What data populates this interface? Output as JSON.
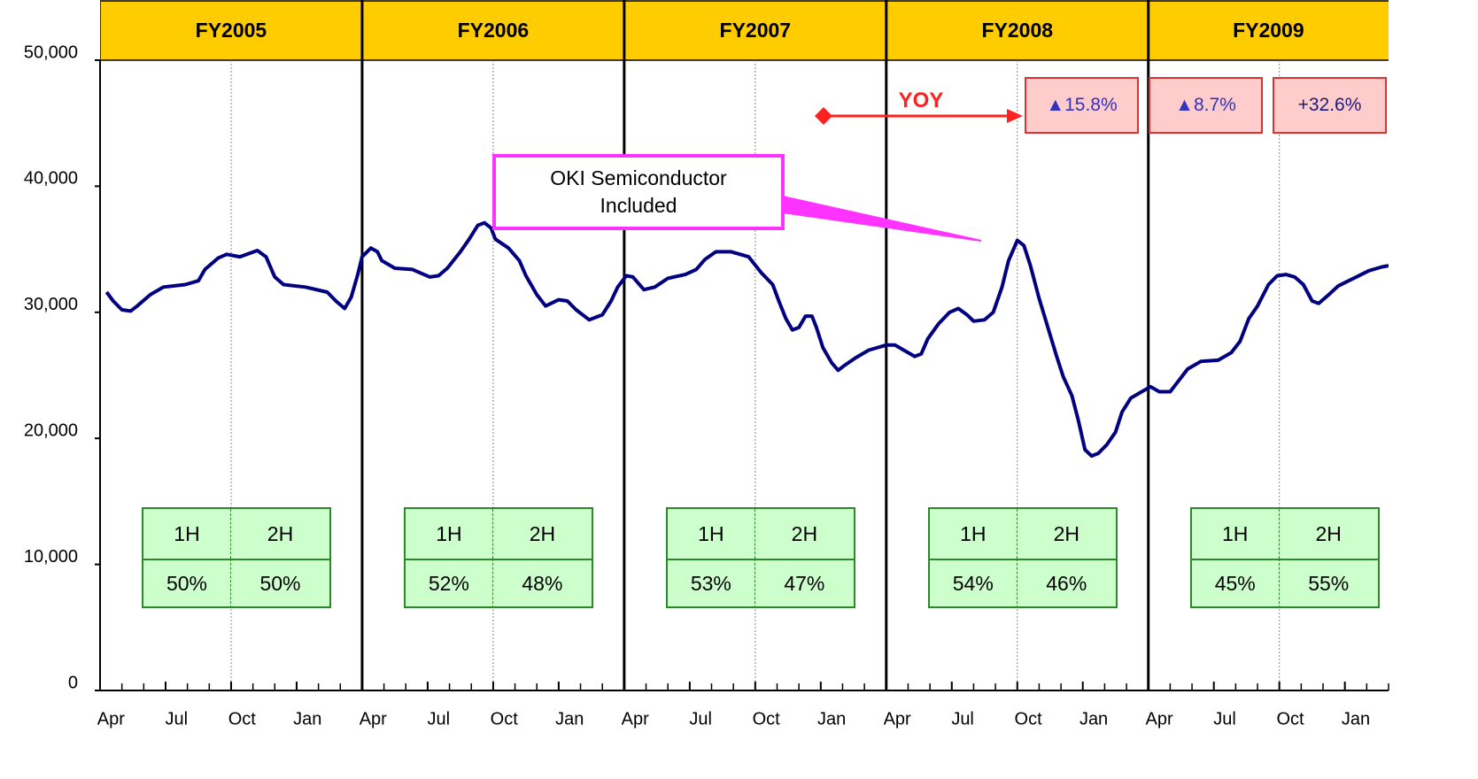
{
  "chart_data": {
    "type": "line",
    "color": "#000080",
    "x": [
      0.3,
      0.6,
      1.0,
      1.4,
      1.7,
      2.3,
      2.9,
      3.9,
      4.5,
      4.8,
      5.4,
      5.8,
      6.4,
      7.2,
      7.6,
      8.0,
      8.4,
      9.4,
      10.4,
      10.8,
      11.2,
      11.5,
      11.8,
      12.0,
      12.4,
      12.7,
      12.9,
      13.5,
      14.3,
      15.1,
      15.5,
      15.9,
      16.5,
      16.9,
      17.3,
      17.6,
      17.9,
      18.1,
      18.7,
      19.2,
      19.5,
      20.0,
      20.4,
      21.0,
      21.4,
      21.8,
      22.4,
      23.0,
      23.4,
      23.7,
      24.1,
      24.4,
      24.9,
      25.4,
      26.0,
      26.8,
      27.3,
      27.7,
      28.2,
      28.9,
      29.7,
      30.3,
      30.8,
      31.1,
      31.4,
      31.7,
      32.0,
      32.3,
      32.6,
      32.8,
      33.1,
      33.5,
      33.8,
      34.1,
      34.6,
      35.2,
      36.0,
      36.4,
      36.8,
      37.3,
      37.6,
      37.9,
      38.4,
      38.9,
      39.3,
      39.7,
      40.0,
      40.5,
      40.9,
      41.3,
      41.6,
      42.0,
      42.3,
      42.6,
      43.0,
      43.4,
      43.8,
      44.1,
      44.5,
      44.8,
      45.1,
      45.4,
      45.7,
      46.1,
      46.5,
      46.8,
      47.2,
      47.7,
      48.1,
      48.5,
      49.0,
      49.4,
      49.8,
      50.4,
      51.2,
      51.8,
      52.2,
      52.6,
      53.0,
      53.5,
      53.9,
      54.3,
      54.7,
      55.1,
      55.5,
      55.8,
      56.2,
      56.7,
      57.4,
      58.1,
      58.7,
      59.0
    ],
    "values": [
      31600,
      30900,
      30200,
      30100,
      30500,
      31400,
      32000,
      32200,
      32500,
      33400,
      34300,
      34600,
      34400,
      34900,
      34400,
      32800,
      32200,
      32000,
      31600,
      30900,
      30300,
      31200,
      33000,
      34400,
      35100,
      34800,
      34100,
      33500,
      33400,
      32800,
      32900,
      33500,
      34800,
      35800,
      36900,
      37100,
      36700,
      35800,
      35100,
      34100,
      32900,
      31400,
      30500,
      31000,
      30900,
      30200,
      29400,
      29800,
      30900,
      32000,
      32900,
      32800,
      31800,
      32000,
      32700,
      33000,
      33400,
      34200,
      34800,
      34800,
      34400,
      33100,
      32200,
      30800,
      29500,
      28600,
      28800,
      29700,
      29700,
      28800,
      27200,
      26000,
      25400,
      25800,
      26400,
      27000,
      27400,
      27400,
      27000,
      26500,
      26700,
      27900,
      29100,
      30000,
      30300,
      29800,
      29300,
      29400,
      30000,
      32000,
      34100,
      35700,
      35300,
      33700,
      31100,
      28800,
      26500,
      24900,
      23400,
      21400,
      19100,
      18600,
      18800,
      19500,
      20500,
      22100,
      23200,
      23700,
      24100,
      23700,
      23700,
      24600,
      25500,
      26100,
      26200,
      26800,
      27700,
      29500,
      30500,
      32200,
      32900,
      33000,
      32800,
      32200,
      30900,
      30700,
      31300,
      32100,
      32700,
      33300,
      33600,
      33700
    ],
    "xlim": [
      0,
      59
    ],
    "ylim": [
      0,
      50000
    ],
    "yticks": [
      0,
      {
        "value": 10000,
        "label": "10,000"
      },
      {
        "value": 20000,
        "label": "20,000"
      },
      {
        "value": 30000,
        "label": "30,000"
      },
      {
        "value": 40000,
        "label": "40,000"
      },
      {
        "value": 50000,
        "label": "50,000"
      }
    ],
    "xticks": [
      {
        "value": 0,
        "label": "Apr"
      },
      {
        "value": 3,
        "label": "Jul"
      },
      {
        "value": 6,
        "label": "Oct"
      },
      {
        "value": 9,
        "label": "Jan"
      },
      {
        "value": 12,
        "label": "Apr"
      },
      {
        "value": 15,
        "label": "Jul"
      },
      {
        "value": 18,
        "label": "Oct"
      },
      {
        "value": 21,
        "label": "Jan"
      },
      {
        "value": 24,
        "label": "Apr"
      },
      {
        "value": 27,
        "label": "Jul"
      },
      {
        "value": 30,
        "label": "Oct"
      },
      {
        "value": 33,
        "label": "Jan"
      },
      {
        "value": 36,
        "label": "Apr"
      },
      {
        "value": 39,
        "label": "Jul"
      },
      {
        "value": 42,
        "label": "Oct"
      },
      {
        "value": 45,
        "label": "Jan"
      },
      {
        "value": 48,
        "label": "Apr"
      },
      {
        "value": 51,
        "label": "Jul"
      },
      {
        "value": 54,
        "label": "Oct"
      },
      {
        "value": 57,
        "label": "Jan"
      }
    ],
    "periods": [
      {
        "label": "FY2005",
        "start": 0,
        "end": 12
      },
      {
        "label": "FY2006",
        "start": 12,
        "end": 24
      },
      {
        "label": "FY2007",
        "start": 24,
        "end": 36
      },
      {
        "label": "FY2008",
        "start": 36,
        "end": 48
      },
      {
        "label": "FY2009",
        "start": 48,
        "end": 60
      }
    ],
    "period_color": "#ffcc00",
    "half_year_tables": [
      {
        "headers": [
          "1H",
          "2H"
        ],
        "shares": [
          "50%",
          "50%"
        ]
      },
      {
        "headers": [
          "1H",
          "2H"
        ],
        "shares": [
          "52%",
          "48%"
        ]
      },
      {
        "headers": [
          "1H",
          "2H"
        ],
        "shares": [
          "53%",
          "47%"
        ]
      },
      {
        "headers": [
          "1H",
          "2H"
        ],
        "shares": [
          "54%",
          "46%"
        ]
      },
      {
        "headers": [
          "1H",
          "2H"
        ],
        "shares": [
          "45%",
          "55%"
        ]
      }
    ],
    "yoy_label": "YOY",
    "yoy_boxes": [
      "▲15.8%",
      "▲8.7%",
      "+32.6%"
    ],
    "callout": "OKI Semiconductor Included"
  }
}
